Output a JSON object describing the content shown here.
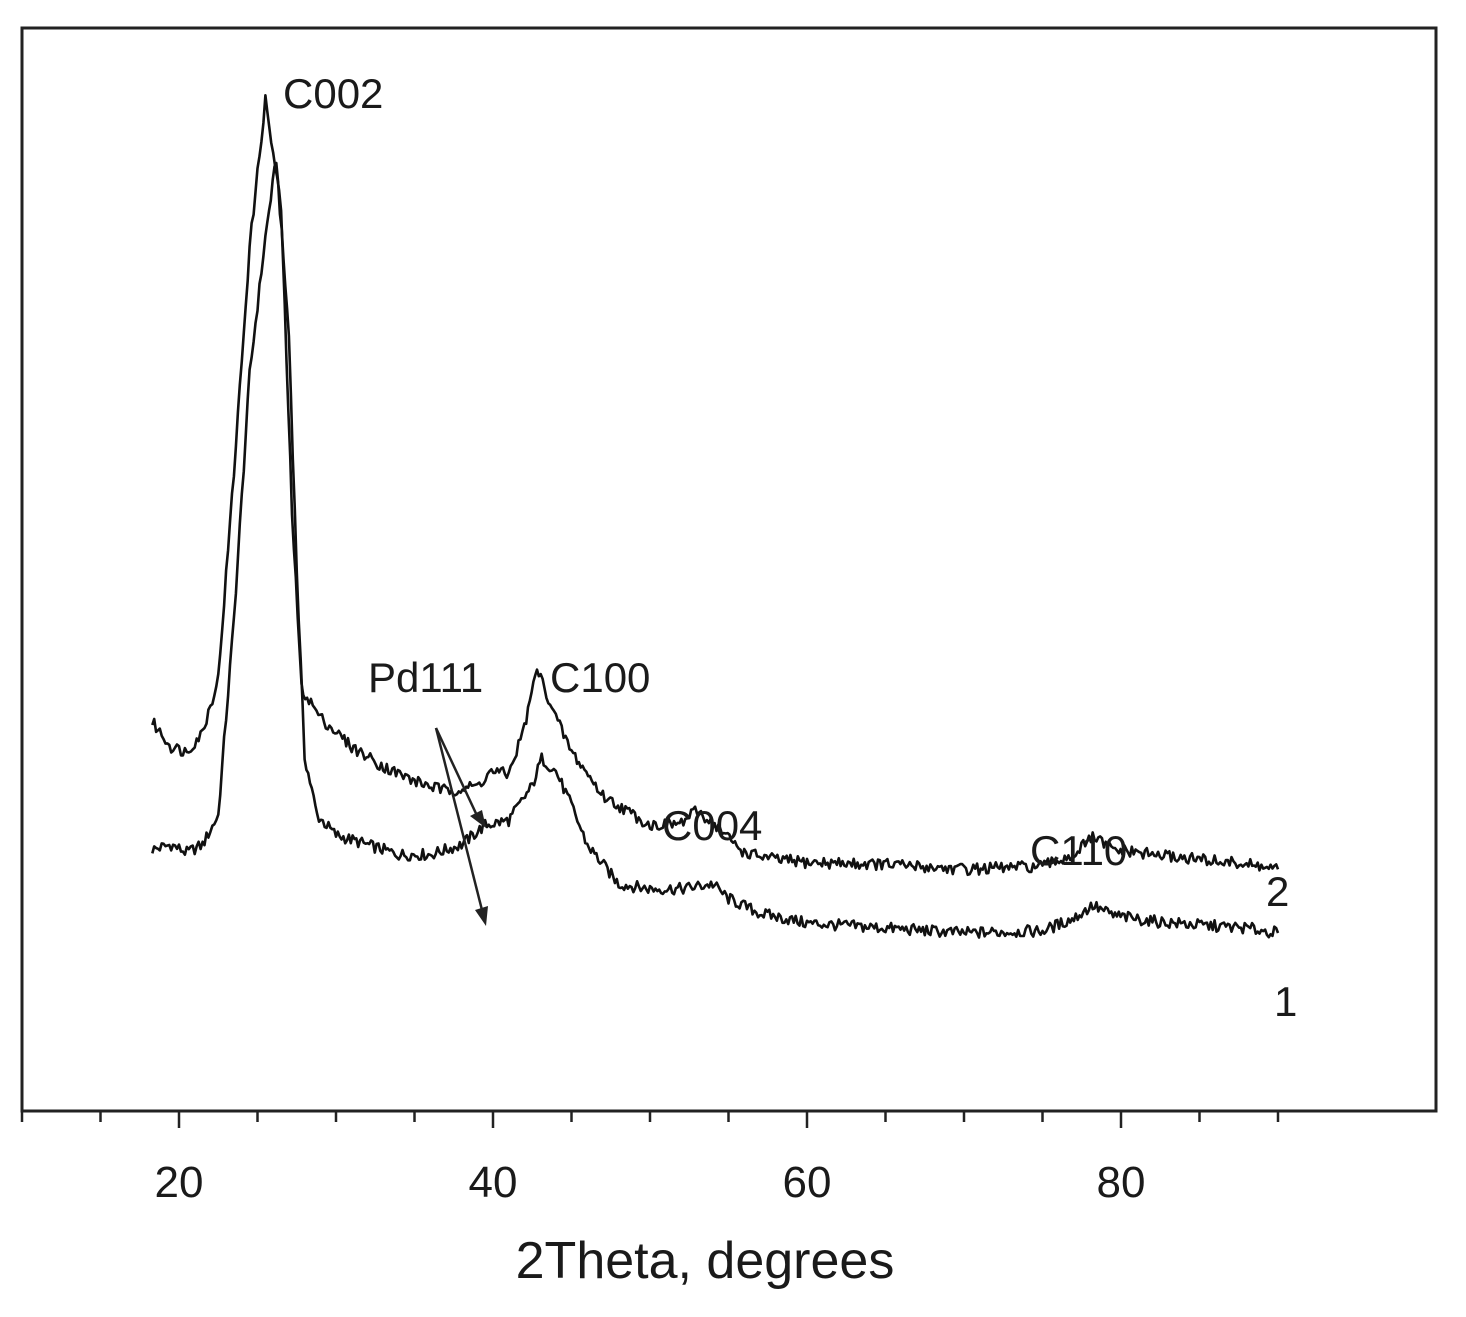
{
  "chart_data": {
    "type": "line",
    "xlabel": "2Theta, degrees",
    "ylabel": "",
    "xlim": [
      10,
      100
    ],
    "x_ticks": [
      20,
      40,
      60,
      80
    ],
    "y_axis": "arbitrary intensity, vertically offset curves, no ticks",
    "grid": false,
    "series": [
      {
        "name": "1",
        "points": [
          [
            18.3,
            0.235
          ],
          [
            19.5,
            0.24
          ],
          [
            20.5,
            0.232
          ],
          [
            21.5,
            0.24
          ],
          [
            22.5,
            0.27
          ],
          [
            23.5,
            0.47
          ],
          [
            24.5,
            0.72
          ],
          [
            25.5,
            0.86
          ],
          [
            26.2,
            0.94
          ],
          [
            27.0,
            0.76
          ],
          [
            27.5,
            0.52
          ],
          [
            28.0,
            0.33
          ],
          [
            28.8,
            0.27
          ],
          [
            30,
            0.25
          ],
          [
            32,
            0.24
          ],
          [
            34,
            0.23
          ],
          [
            36,
            0.23
          ],
          [
            38,
            0.24
          ],
          [
            39.5,
            0.26
          ],
          [
            41,
            0.265
          ],
          [
            42.5,
            0.3
          ],
          [
            43.1,
            0.328
          ],
          [
            44,
            0.315
          ],
          [
            45,
            0.28
          ],
          [
            46,
            0.24
          ],
          [
            48,
            0.2
          ],
          [
            50,
            0.195
          ],
          [
            52,
            0.195
          ],
          [
            54,
            0.2
          ],
          [
            55,
            0.185
          ],
          [
            57,
            0.17
          ],
          [
            60,
            0.16
          ],
          [
            65,
            0.155
          ],
          [
            70,
            0.15
          ],
          [
            75,
            0.152
          ],
          [
            77,
            0.165
          ],
          [
            78.2,
            0.178
          ],
          [
            79.5,
            0.168
          ],
          [
            82,
            0.162
          ],
          [
            85,
            0.158
          ],
          [
            88,
            0.155
          ],
          [
            90,
            0.15
          ]
        ]
      },
      {
        "name": "2",
        "points": [
          [
            18.3,
            0.365
          ],
          [
            19.5,
            0.34
          ],
          [
            20.5,
            0.335
          ],
          [
            21.5,
            0.355
          ],
          [
            22.5,
            0.41
          ],
          [
            23.5,
            0.62
          ],
          [
            24.5,
            0.85
          ],
          [
            25.5,
            1.0
          ],
          [
            26.5,
            0.89
          ],
          [
            27.2,
            0.58
          ],
          [
            27.8,
            0.4
          ],
          [
            29,
            0.37
          ],
          [
            31,
            0.34
          ],
          [
            33,
            0.32
          ],
          [
            35,
            0.305
          ],
          [
            37,
            0.295
          ],
          [
            39,
            0.3
          ],
          [
            39.9,
            0.315
          ],
          [
            41,
            0.312
          ],
          [
            42,
            0.36
          ],
          [
            42.8,
            0.42
          ],
          [
            44,
            0.37
          ],
          [
            45,
            0.335
          ],
          [
            47,
            0.29
          ],
          [
            50,
            0.26
          ],
          [
            52,
            0.262
          ],
          [
            53,
            0.275
          ],
          [
            54,
            0.262
          ],
          [
            56,
            0.232
          ],
          [
            58,
            0.225
          ],
          [
            60,
            0.222
          ],
          [
            65,
            0.22
          ],
          [
            70,
            0.215
          ],
          [
            75,
            0.218
          ],
          [
            77,
            0.23
          ],
          [
            78.2,
            0.248
          ],
          [
            79.5,
            0.235
          ],
          [
            82,
            0.23
          ],
          [
            85,
            0.225
          ],
          [
            88,
            0.22
          ],
          [
            90,
            0.215
          ]
        ]
      }
    ],
    "annotations": [
      {
        "text": "C002",
        "x": 25.5
      },
      {
        "text": "Pd111",
        "x": 40
      },
      {
        "text": "C100",
        "x": 43
      },
      {
        "text": "C004",
        "x": 54
      },
      {
        "text": "C110",
        "x": 78
      }
    ],
    "curve_labels": [
      "2",
      "1"
    ]
  }
}
